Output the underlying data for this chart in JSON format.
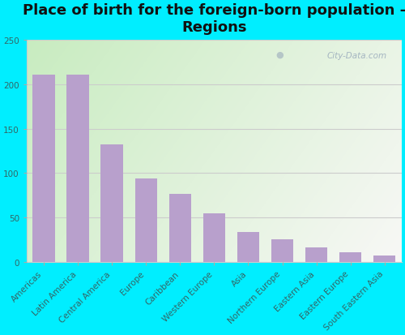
{
  "title": "Place of birth for the foreign-born population -\nRegions",
  "categories": [
    "Americas",
    "Latin America",
    "Central America",
    "Europe",
    "Caribbean",
    "Western Europe",
    "Asia",
    "Northern Europe",
    "Eastern Asia",
    "Eastern Europe",
    "South Eastern Asia"
  ],
  "values": [
    211,
    211,
    132,
    94,
    77,
    55,
    34,
    26,
    16,
    11,
    7
  ],
  "bar_color": "#b8a0cc",
  "background_outer": "#00eeff",
  "background_inner_left": "#c8ecc0",
  "background_inner_right": "#f5f5f5",
  "ylim": [
    0,
    250
  ],
  "yticks": [
    0,
    50,
    100,
    150,
    200,
    250
  ],
  "title_fontsize": 13,
  "tick_fontsize": 7.5,
  "watermark": "City-Data.com",
  "grid_color": "#cccccc",
  "tick_color": "#336666"
}
